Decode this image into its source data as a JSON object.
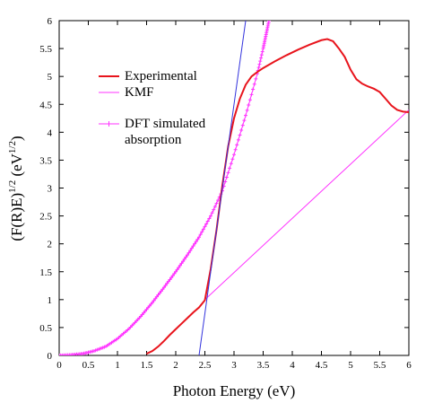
{
  "chart_data": {
    "type": "line",
    "title": "",
    "xlabel": "Photon Energy (eV)",
    "ylabel": "(F(R)E)",
    "ylabel_sup": "1/2",
    "ylabel_unit": "(eV",
    "ylabel_unit_sup": "1/2",
    "ylabel_unit_close": ")",
    "xlim": [
      0,
      6
    ],
    "ylim": [
      0,
      6
    ],
    "x_ticks": [
      "0",
      "0.5",
      "1",
      "1.5",
      "2",
      "2.5",
      "3",
      "3.5",
      "4",
      "4.5",
      "5",
      "5.5",
      "6"
    ],
    "y_ticks": [
      "0",
      "0.5",
      "1",
      "1.5",
      "2",
      "2.5",
      "3",
      "3.5",
      "4",
      "4.5",
      "5",
      "5.5",
      "6"
    ],
    "grid": false,
    "legend_position": "upper-left",
    "series": [
      {
        "name": "Experimental",
        "color": "#e8141c",
        "style": "line",
        "x": [
          1.5,
          1.6,
          1.7,
          1.8,
          1.9,
          2.0,
          2.1,
          2.2,
          2.3,
          2.4,
          2.5,
          2.6,
          2.7,
          2.8,
          2.9,
          3.0,
          3.1,
          3.2,
          3.3,
          3.4,
          3.5,
          3.7,
          3.9,
          4.1,
          4.3,
          4.5,
          4.6,
          4.7,
          4.8,
          4.9,
          5.0,
          5.1,
          5.2,
          5.3,
          5.4,
          5.5,
          5.6,
          5.7,
          5.8,
          5.9,
          6.0
        ],
        "y": [
          0.03,
          0.08,
          0.16,
          0.26,
          0.37,
          0.47,
          0.57,
          0.67,
          0.77,
          0.86,
          0.99,
          1.55,
          2.25,
          3.05,
          3.75,
          4.25,
          4.6,
          4.85,
          5.0,
          5.08,
          5.15,
          5.27,
          5.38,
          5.48,
          5.57,
          5.65,
          5.67,
          5.63,
          5.5,
          5.35,
          5.12,
          4.95,
          4.87,
          4.82,
          4.78,
          4.72,
          4.6,
          4.48,
          4.4,
          4.37,
          4.36
        ]
      },
      {
        "name": "KMF",
        "color": "#ff33ff",
        "style": "line",
        "x": [
          2.5,
          6.0
        ],
        "y": [
          1.0,
          4.4
        ]
      },
      {
        "name": "DFT simulated absorption",
        "color": "#ff33ff",
        "style": "line-markers",
        "x": [
          0.0,
          0.2,
          0.4,
          0.6,
          0.8,
          1.0,
          1.2,
          1.4,
          1.6,
          1.8,
          2.0,
          2.2,
          2.4,
          2.6,
          2.8,
          3.0,
          3.2,
          3.4,
          3.5,
          3.55,
          3.6
        ],
        "y": [
          0.0,
          0.01,
          0.03,
          0.08,
          0.16,
          0.3,
          0.48,
          0.7,
          0.95,
          1.22,
          1.5,
          1.8,
          2.12,
          2.5,
          2.95,
          3.6,
          4.3,
          5.05,
          5.5,
          5.75,
          6.0
        ]
      },
      {
        "name": "",
        "color": "#3333dd",
        "style": "line",
        "x": [
          2.4,
          3.2
        ],
        "y": [
          0.0,
          6.0
        ]
      }
    ]
  }
}
